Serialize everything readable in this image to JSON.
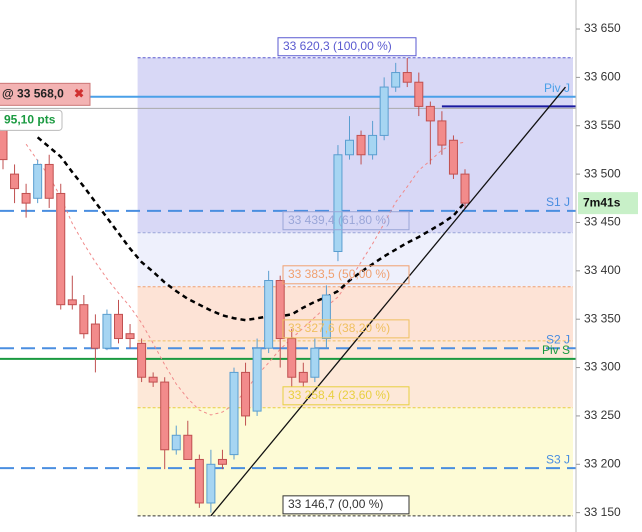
{
  "chart_data": {
    "type": "candlestick",
    "ylim": [
      33130,
      33680
    ],
    "yticks": [
      {
        "value": 33650,
        "label": "33 650"
      },
      {
        "value": 33600,
        "label": "33 600"
      },
      {
        "value": 33550,
        "label": "33 550"
      },
      {
        "value": 33500,
        "label": "33 500"
      },
      {
        "value": 33450,
        "label": "33 450"
      },
      {
        "value": 33400,
        "label": "33 400"
      },
      {
        "value": 33350,
        "label": "33 350"
      },
      {
        "value": 33300,
        "label": "33 300"
      },
      {
        "value": 33250,
        "label": "33 250"
      },
      {
        "value": 33200,
        "label": "33 200"
      },
      {
        "value": 33150,
        "label": "33 150"
      }
    ],
    "up_color": "#a6d5f2",
    "down_color": "#f28b8b",
    "open": [
      33555,
      33500,
      33480,
      33475,
      33510,
      33480,
      33370,
      33365,
      33345,
      33320,
      33355,
      33335,
      33325,
      33290,
      33285,
      33215,
      33230,
      33205,
      33160,
      33205,
      33210,
      33295,
      33255,
      33320,
      33390,
      33330,
      33295,
      33290,
      33330,
      33420,
      33520,
      33540,
      33520,
      33540,
      33590,
      33605,
      33595,
      33570,
      33555,
      33535,
      33500
    ],
    "high": [
      33565,
      33510,
      33490,
      33515,
      33520,
      33490,
      33395,
      33375,
      33355,
      33360,
      33370,
      33345,
      33330,
      33295,
      33290,
      33240,
      33245,
      33210,
      33215,
      33215,
      33300,
      33305,
      33330,
      33400,
      33395,
      33340,
      33305,
      33330,
      33385,
      33530,
      33560,
      33545,
      33555,
      33600,
      33615,
      33620,
      33605,
      33575,
      33565,
      33540,
      33505
    ],
    "low": [
      33505,
      33470,
      33455,
      33470,
      33465,
      33360,
      33360,
      33330,
      33295,
      33318,
      33325,
      33320,
      33285,
      33280,
      33195,
      33210,
      33205,
      33155,
      33150,
      33195,
      33205,
      33240,
      33250,
      33315,
      33300,
      33280,
      33280,
      33285,
      33320,
      33410,
      33515,
      33510,
      33515,
      33535,
      33585,
      33590,
      33560,
      33510,
      33520,
      33495,
      33465
    ],
    "close": [
      33515,
      33485,
      33470,
      33510,
      33475,
      33365,
      33365,
      33335,
      33320,
      33355,
      33330,
      33330,
      33290,
      33285,
      33215,
      33230,
      33205,
      33160,
      33200,
      33200,
      33295,
      33250,
      33320,
      33390,
      33330,
      33290,
      33285,
      33320,
      33375,
      33520,
      33535,
      33520,
      33540,
      33590,
      33605,
      33595,
      33570,
      33555,
      33530,
      33500,
      33470
    ],
    "moving_averages": [
      {
        "color": "#000000",
        "values": [
          null,
          null,
          null,
          33538,
          33528,
          33518,
          33502,
          33487,
          33471,
          33455,
          33439,
          33423,
          33409,
          33399,
          33388,
          33379,
          33371,
          33365,
          33359,
          33354,
          33351,
          33349,
          33351,
          33353,
          33353,
          33355,
          33362,
          33368,
          33373,
          33379,
          33390,
          33399,
          33407,
          33415,
          33422,
          33429,
          33435,
          33442,
          33449,
          33457,
          33471
        ]
      },
      {
        "color": "#f08a8a",
        "values": [
          null,
          null,
          33531,
          33514,
          33498,
          33476,
          33449,
          33428,
          33409,
          33392,
          33377,
          33363,
          33346,
          33325,
          33303,
          33283,
          33268,
          33256,
          33251,
          33254,
          33262,
          33276,
          33292,
          33305,
          33319,
          33330,
          33341,
          33352,
          33363,
          33373,
          33390,
          33409,
          33428,
          33449,
          33471,
          33487,
          33504,
          33514,
          33525,
          33531,
          33533
        ]
      }
    ],
    "fib_start": 12,
    "fib_levels": [
      {
        "value": 33620.3,
        "label": "33 620,3 (100,00 %)",
        "color": "#5a5ad0",
        "fill": "#d8d8f6"
      },
      {
        "value": 33439.4,
        "label": "33 439,4 (61,80 %)",
        "color": "#9aa6d8",
        "fill": "#eef0fc"
      },
      {
        "value": 33383.5,
        "label": "33 383,5 (50,00 %)",
        "color": "#f0a070",
        "fill": "#fde3d6"
      },
      {
        "value": 33327.6,
        "label": "33 327,6 (38,20 %)",
        "color": "#f0c060",
        "fill": "#fde8d8"
      },
      {
        "value": 33258.4,
        "label": "33 258,4 (23,60 %)",
        "color": "#e8d040",
        "fill": "#fdfbd6"
      },
      {
        "value": 33146.7,
        "label": "33 146,7 (0,00 %)",
        "color": "#333333"
      }
    ],
    "pivots": [
      {
        "name": "Piv J",
        "value": 33580,
        "color": "#4aa0e8",
        "dash": false
      },
      {
        "name": "S1 J",
        "value": 33462,
        "color": "#4a8ee0",
        "dash": true
      },
      {
        "name": "S2 J",
        "value": 33320,
        "color": "#4a8ee0",
        "dash": true
      },
      {
        "name": "Piv S",
        "value": 33309,
        "color": "#1a9a40",
        "dash": false
      },
      {
        "name": "S3 J",
        "value": 33196,
        "color": "#4a8ee0",
        "dash": true
      }
    ],
    "resistance": {
      "value": 33570,
      "from": 38,
      "color": "#1a1aa0"
    },
    "trend_line": {
      "from": [
        18,
        33146.7
      ],
      "to": [
        48.7,
        33590
      ]
    },
    "order": {
      "label": "@ 33 568,0",
      "value": 33568,
      "pnl": "95,10 pts"
    },
    "timer": "7m41s"
  }
}
